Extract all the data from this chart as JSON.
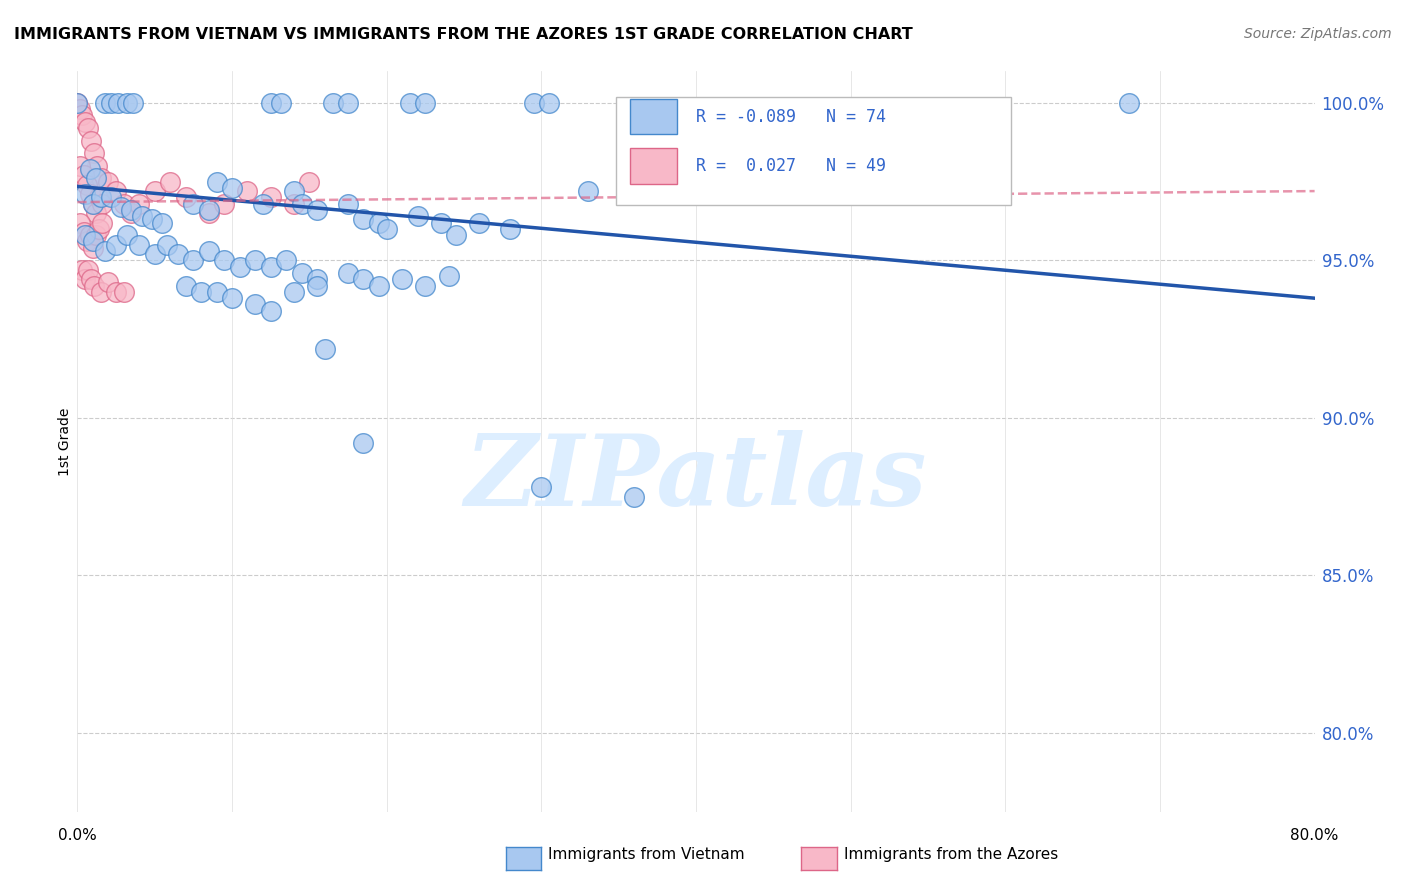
{
  "title": "IMMIGRANTS FROM VIETNAM VS IMMIGRANTS FROM THE AZORES 1ST GRADE CORRELATION CHART",
  "source": "Source: ZipAtlas.com",
  "ylabel": "1st Grade",
  "yticks_labels": [
    "80.0%",
    "85.0%",
    "90.0%",
    "95.0%",
    "100.0%"
  ],
  "ytick_vals": [
    0.8,
    0.85,
    0.9,
    0.95,
    1.0
  ],
  "xticks_vals": [
    0.0,
    0.1,
    0.2,
    0.3,
    0.4,
    0.5,
    0.6,
    0.7,
    0.8
  ],
  "xlim": [
    0.0,
    0.8
  ],
  "ylim": [
    0.775,
    1.01
  ],
  "color_blue": "#a8c8f0",
  "color_pink": "#f8b8c8",
  "color_blue_edge": "#4488cc",
  "color_pink_edge": "#dd6688",
  "color_blue_line": "#2255aa",
  "color_pink_line": "#dd6688",
  "watermark_color": "#ddeeff",
  "blue_trend_x": [
    0.0,
    0.8
  ],
  "blue_trend_y": [
    0.9735,
    0.938
  ],
  "pink_trend_x": [
    0.0,
    0.8
  ],
  "pink_trend_y": [
    0.9685,
    0.972
  ],
  "blue_points": [
    [
      0.0,
      1.0
    ],
    [
      0.018,
      1.0
    ],
    [
      0.022,
      1.0
    ],
    [
      0.026,
      1.0
    ],
    [
      0.032,
      1.0
    ],
    [
      0.036,
      1.0
    ],
    [
      0.125,
      1.0
    ],
    [
      0.132,
      1.0
    ],
    [
      0.165,
      1.0
    ],
    [
      0.175,
      1.0
    ],
    [
      0.215,
      1.0
    ],
    [
      0.225,
      1.0
    ],
    [
      0.295,
      1.0
    ],
    [
      0.305,
      1.0
    ],
    [
      0.68,
      1.0
    ],
    [
      0.008,
      0.979
    ],
    [
      0.012,
      0.976
    ],
    [
      0.005,
      0.971
    ],
    [
      0.01,
      0.968
    ],
    [
      0.015,
      0.97
    ],
    [
      0.022,
      0.97
    ],
    [
      0.028,
      0.967
    ],
    [
      0.035,
      0.966
    ],
    [
      0.042,
      0.964
    ],
    [
      0.048,
      0.963
    ],
    [
      0.055,
      0.962
    ],
    [
      0.075,
      0.968
    ],
    [
      0.085,
      0.966
    ],
    [
      0.09,
      0.975
    ],
    [
      0.1,
      0.973
    ],
    [
      0.12,
      0.968
    ],
    [
      0.14,
      0.972
    ],
    [
      0.145,
      0.968
    ],
    [
      0.155,
      0.966
    ],
    [
      0.175,
      0.968
    ],
    [
      0.185,
      0.963
    ],
    [
      0.195,
      0.962
    ],
    [
      0.2,
      0.96
    ],
    [
      0.22,
      0.964
    ],
    [
      0.235,
      0.962
    ],
    [
      0.245,
      0.958
    ],
    [
      0.26,
      0.962
    ],
    [
      0.28,
      0.96
    ],
    [
      0.33,
      0.972
    ],
    [
      0.005,
      0.958
    ],
    [
      0.01,
      0.956
    ],
    [
      0.018,
      0.953
    ],
    [
      0.025,
      0.955
    ],
    [
      0.032,
      0.958
    ],
    [
      0.04,
      0.955
    ],
    [
      0.05,
      0.952
    ],
    [
      0.058,
      0.955
    ],
    [
      0.065,
      0.952
    ],
    [
      0.075,
      0.95
    ],
    [
      0.085,
      0.953
    ],
    [
      0.095,
      0.95
    ],
    [
      0.105,
      0.948
    ],
    [
      0.115,
      0.95
    ],
    [
      0.125,
      0.948
    ],
    [
      0.135,
      0.95
    ],
    [
      0.145,
      0.946
    ],
    [
      0.155,
      0.944
    ],
    [
      0.175,
      0.946
    ],
    [
      0.185,
      0.944
    ],
    [
      0.195,
      0.942
    ],
    [
      0.21,
      0.944
    ],
    [
      0.225,
      0.942
    ],
    [
      0.24,
      0.945
    ],
    [
      0.07,
      0.942
    ],
    [
      0.08,
      0.94
    ],
    [
      0.09,
      0.94
    ],
    [
      0.1,
      0.938
    ],
    [
      0.115,
      0.936
    ],
    [
      0.125,
      0.934
    ],
    [
      0.14,
      0.94
    ],
    [
      0.155,
      0.942
    ],
    [
      0.16,
      0.922
    ],
    [
      0.185,
      0.892
    ],
    [
      0.3,
      0.878
    ],
    [
      0.36,
      0.875
    ]
  ],
  "pink_points": [
    [
      0.0,
      1.0
    ],
    [
      0.002,
      0.998
    ],
    [
      0.003,
      0.996
    ],
    [
      0.005,
      0.994
    ],
    [
      0.007,
      0.992
    ],
    [
      0.009,
      0.988
    ],
    [
      0.011,
      0.984
    ],
    [
      0.013,
      0.98
    ],
    [
      0.015,
      0.976
    ],
    [
      0.002,
      0.98
    ],
    [
      0.004,
      0.977
    ],
    [
      0.006,
      0.974
    ],
    [
      0.008,
      0.971
    ],
    [
      0.01,
      0.968
    ],
    [
      0.012,
      0.965
    ],
    [
      0.014,
      0.97
    ],
    [
      0.016,
      0.968
    ],
    [
      0.02,
      0.975
    ],
    [
      0.025,
      0.972
    ],
    [
      0.03,
      0.968
    ],
    [
      0.035,
      0.965
    ],
    [
      0.04,
      0.968
    ],
    [
      0.05,
      0.972
    ],
    [
      0.06,
      0.975
    ],
    [
      0.07,
      0.97
    ],
    [
      0.085,
      0.965
    ],
    [
      0.095,
      0.968
    ],
    [
      0.11,
      0.972
    ],
    [
      0.125,
      0.97
    ],
    [
      0.14,
      0.968
    ],
    [
      0.15,
      0.975
    ],
    [
      0.002,
      0.962
    ],
    [
      0.004,
      0.959
    ],
    [
      0.006,
      0.956
    ],
    [
      0.008,
      0.958
    ],
    [
      0.01,
      0.954
    ],
    [
      0.012,
      0.958
    ],
    [
      0.014,
      0.96
    ],
    [
      0.016,
      0.962
    ],
    [
      0.003,
      0.947
    ],
    [
      0.005,
      0.944
    ],
    [
      0.007,
      0.947
    ],
    [
      0.009,
      0.944
    ],
    [
      0.011,
      0.942
    ],
    [
      0.015,
      0.94
    ],
    [
      0.02,
      0.943
    ],
    [
      0.025,
      0.94
    ],
    [
      0.03,
      0.94
    ]
  ]
}
